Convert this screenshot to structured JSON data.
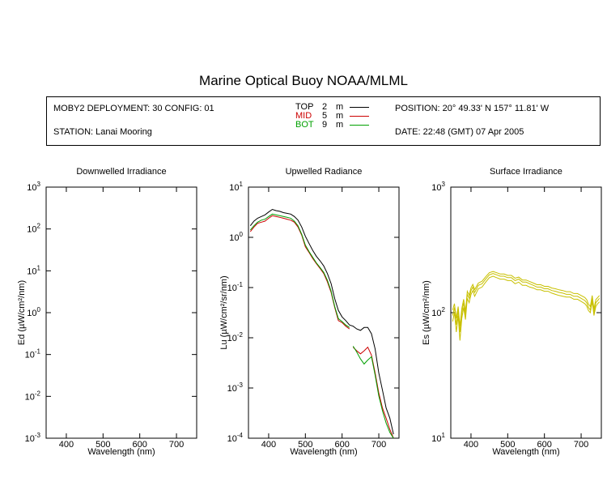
{
  "title": "Marine Optical Buoy NOAA/MLML",
  "info": {
    "deployment": "MOBY2 DEPLOYMENT: 30 CONFIG: 01",
    "station": "STATION: Lanai Mooring",
    "position": "POSITION: 20° 49.33' N   157° 11.81' W",
    "date": "DATE: 22:48 (GMT) 07 Apr 2005",
    "depths": [
      {
        "name": "TOP",
        "value": "2",
        "unit": "m",
        "color": "#000000"
      },
      {
        "name": "MID",
        "value": "5",
        "unit": "m",
        "color": "#cc0000"
      },
      {
        "name": "BOT",
        "value": "9",
        "unit": "m",
        "color": "#00a000"
      }
    ]
  },
  "colors": {
    "top": "#000000",
    "mid": "#cc0000",
    "bot": "#00a000",
    "surface": "#c8c000"
  },
  "chart_data": [
    {
      "type": "line",
      "title": "Downwelled Irradiance",
      "xlabel": "Wavelength (nm)",
      "ylabel_base": "Ed",
      "ylabel_unit": "(µW/cm²/nm)",
      "xlim": [
        345,
        755
      ],
      "ylim": [
        0.001,
        1000
      ],
      "yscale": "log",
      "xticks": [
        400,
        500,
        600,
        700
      ],
      "yticks": [
        {
          "base": "10",
          "exp": "-3"
        },
        {
          "base": "10",
          "exp": "-2"
        },
        {
          "base": "10",
          "exp": "-1"
        },
        {
          "base": "10",
          "exp": "0"
        },
        {
          "base": "10",
          "exp": "1"
        },
        {
          "base": "10",
          "exp": "2"
        },
        {
          "base": "10",
          "exp": "3"
        }
      ],
      "series": []
    },
    {
      "type": "line",
      "title": "Upwelled Radiance",
      "xlabel": "Wavelength (nm)",
      "ylabel_base": "Lu",
      "ylabel_unit": "(µW/cm²/sr/nm)",
      "xlim": [
        345,
        755
      ],
      "ylim": [
        0.0001,
        10
      ],
      "yscale": "log",
      "xticks": [
        400,
        500,
        600,
        700
      ],
      "yticks": [
        {
          "base": "10",
          "exp": "-4"
        },
        {
          "base": "10",
          "exp": "-3"
        },
        {
          "base": "10",
          "exp": "-2"
        },
        {
          "base": "10",
          "exp": "-1"
        },
        {
          "base": "10",
          "exp": "0"
        },
        {
          "base": "10",
          "exp": "1"
        }
      ],
      "series": [
        {
          "name": "TOP",
          "color": "#000000",
          "x": [
            350,
            360,
            370,
            380,
            390,
            400,
            410,
            420,
            430,
            440,
            450,
            460,
            470,
            480,
            490,
            500,
            510,
            520,
            530,
            540,
            550,
            560,
            570,
            580,
            590,
            600,
            610,
            620,
            630,
            640,
            650,
            660,
            670,
            680,
            690,
            700,
            710,
            720,
            730,
            740
          ],
          "y": [
            1.7,
            2.1,
            2.4,
            2.6,
            2.8,
            3.2,
            3.6,
            3.4,
            3.3,
            3.1,
            3.0,
            2.9,
            2.6,
            2.2,
            1.6,
            1.05,
            0.75,
            0.55,
            0.42,
            0.34,
            0.27,
            0.19,
            0.12,
            0.06,
            0.035,
            0.026,
            0.022,
            0.018,
            0.017,
            0.015,
            0.014,
            0.016,
            0.016,
            0.012,
            0.006,
            0.002,
            0.0009,
            0.0004,
            0.00025,
            0.00012
          ]
        },
        {
          "name": "MID",
          "color": "#cc0000",
          "x": [
            350,
            360,
            370,
            380,
            390,
            400,
            410,
            420,
            430,
            440,
            450,
            460,
            470,
            480,
            490,
            500,
            510,
            520,
            530,
            540,
            550,
            560,
            570,
            580,
            590,
            600,
            610,
            620
          ],
          "y": [
            1.3,
            1.6,
            1.9,
            2.0,
            2.1,
            2.4,
            2.7,
            2.6,
            2.5,
            2.4,
            2.3,
            2.2,
            2.0,
            1.6,
            1.1,
            0.65,
            0.5,
            0.38,
            0.3,
            0.24,
            0.19,
            0.13,
            0.08,
            0.04,
            0.022,
            0.02,
            0.017,
            0.015
          ]
        },
        {
          "name": "MID",
          "color": "#cc0000",
          "x": [
            630,
            640,
            650,
            660,
            670,
            680,
            690,
            700,
            710,
            720,
            730,
            740
          ],
          "y": [
            0.0065,
            0.0055,
            0.0048,
            0.0055,
            0.0065,
            0.0045,
            0.002,
            0.0008,
            0.0004,
            0.00025,
            0.00015,
            0.0001
          ]
        },
        {
          "name": "BOT",
          "color": "#00a000",
          "x": [
            350,
            360,
            370,
            380,
            390,
            400,
            410,
            420,
            430,
            440,
            450,
            460,
            470,
            480,
            490,
            500,
            510,
            520,
            530,
            540,
            550,
            560,
            570,
            580,
            590,
            600,
            610,
            620
          ],
          "y": [
            1.4,
            1.7,
            2.0,
            2.2,
            2.3,
            2.6,
            2.9,
            2.8,
            2.7,
            2.6,
            2.5,
            2.4,
            2.1,
            1.7,
            1.15,
            0.7,
            0.52,
            0.4,
            0.31,
            0.25,
            0.2,
            0.14,
            0.085,
            0.042,
            0.024,
            0.021,
            0.018,
            0.016
          ]
        },
        {
          "name": "BOT",
          "color": "#00a000",
          "x": [
            630,
            640,
            650,
            660,
            670,
            680,
            690,
            700,
            710,
            720,
            730,
            740
          ],
          "y": [
            0.0068,
            0.0052,
            0.0038,
            0.003,
            0.0036,
            0.0042,
            0.0018,
            0.0007,
            0.00035,
            0.0002,
            0.00013,
            0.0001
          ]
        }
      ]
    },
    {
      "type": "line",
      "title": "Surface Irradiance",
      "xlabel": "Wavelength (nm)",
      "ylabel_base": "Es",
      "ylabel_unit": "(µW/cm²/nm)",
      "xlim": [
        345,
        755
      ],
      "ylim": [
        10,
        1000
      ],
      "yscale": "log",
      "xticks": [
        400,
        500,
        600,
        700
      ],
      "yticks": [
        {
          "base": "10",
          "exp": "1"
        },
        {
          "base": "10",
          "exp": "2"
        },
        {
          "base": "10",
          "exp": "3"
        }
      ],
      "series": [
        {
          "color": "#c8c000",
          "x": [
            350,
            355,
            360,
            365,
            370,
            375,
            380,
            385,
            390,
            395,
            400,
            405,
            410,
            420,
            430,
            440,
            450,
            460,
            470,
            480,
            490,
            500,
            510,
            520,
            530,
            540,
            550,
            560,
            570,
            580,
            590,
            600,
            610,
            620,
            630,
            640,
            650,
            660,
            670,
            680,
            690,
            700,
            710,
            715,
            720,
            725,
            730,
            735,
            740,
            745,
            750
          ],
          "y": [
            95,
            110,
            80,
            105,
            70,
            100,
            120,
            95,
            140,
            130,
            150,
            160,
            145,
            165,
            170,
            185,
            200,
            205,
            200,
            195,
            195,
            190,
            190,
            180,
            185,
            175,
            175,
            170,
            165,
            160,
            160,
            155,
            155,
            150,
            148,
            145,
            143,
            140,
            140,
            135,
            135,
            130,
            125,
            120,
            110,
            105,
            130,
            100,
            120,
            125,
            130
          ]
        },
        {
          "color": "#c8c000",
          "x": [
            350,
            355,
            360,
            365,
            370,
            375,
            380,
            385,
            390,
            395,
            400,
            405,
            410,
            420,
            430,
            440,
            450,
            460,
            470,
            480,
            490,
            500,
            510,
            520,
            530,
            540,
            550,
            560,
            570,
            580,
            590,
            600,
            610,
            620,
            630,
            640,
            650,
            660,
            670,
            680,
            690,
            700,
            710,
            715,
            720,
            725,
            730,
            735,
            740,
            745,
            750
          ],
          "y": [
            85,
            100,
            70,
            95,
            60,
            90,
            110,
            88,
            130,
            120,
            140,
            150,
            135,
            155,
            160,
            175,
            190,
            195,
            190,
            185,
            185,
            180,
            180,
            170,
            175,
            165,
            165,
            160,
            157,
            152,
            152,
            148,
            148,
            143,
            140,
            137,
            135,
            133,
            133,
            128,
            128,
            123,
            118,
            113,
            104,
            100,
            123,
            95,
            112,
            118,
            122
          ]
        },
        {
          "color": "#c8c000",
          "x": [
            350,
            355,
            360,
            365,
            370,
            375,
            380,
            385,
            390,
            395,
            400,
            405,
            410,
            420,
            430,
            440,
            450,
            460,
            470,
            480,
            490,
            500,
            510,
            520,
            530,
            540,
            550,
            560,
            570,
            580,
            590,
            600,
            610,
            620,
            630,
            640,
            650,
            660,
            670,
            680,
            690,
            700,
            710,
            715,
            720,
            725,
            730,
            735,
            740,
            745,
            750
          ],
          "y": [
            105,
            118,
            90,
            112,
            78,
            108,
            128,
            102,
            148,
            138,
            158,
            168,
            153,
            172,
            178,
            193,
            208,
            213,
            208,
            203,
            203,
            198,
            198,
            188,
            192,
            182,
            182,
            177,
            172,
            167,
            167,
            162,
            162,
            157,
            155,
            152,
            150,
            147,
            147,
            142,
            142,
            137,
            132,
            127,
            117,
            112,
            137,
            107,
            127,
            132,
            137
          ]
        }
      ]
    }
  ]
}
